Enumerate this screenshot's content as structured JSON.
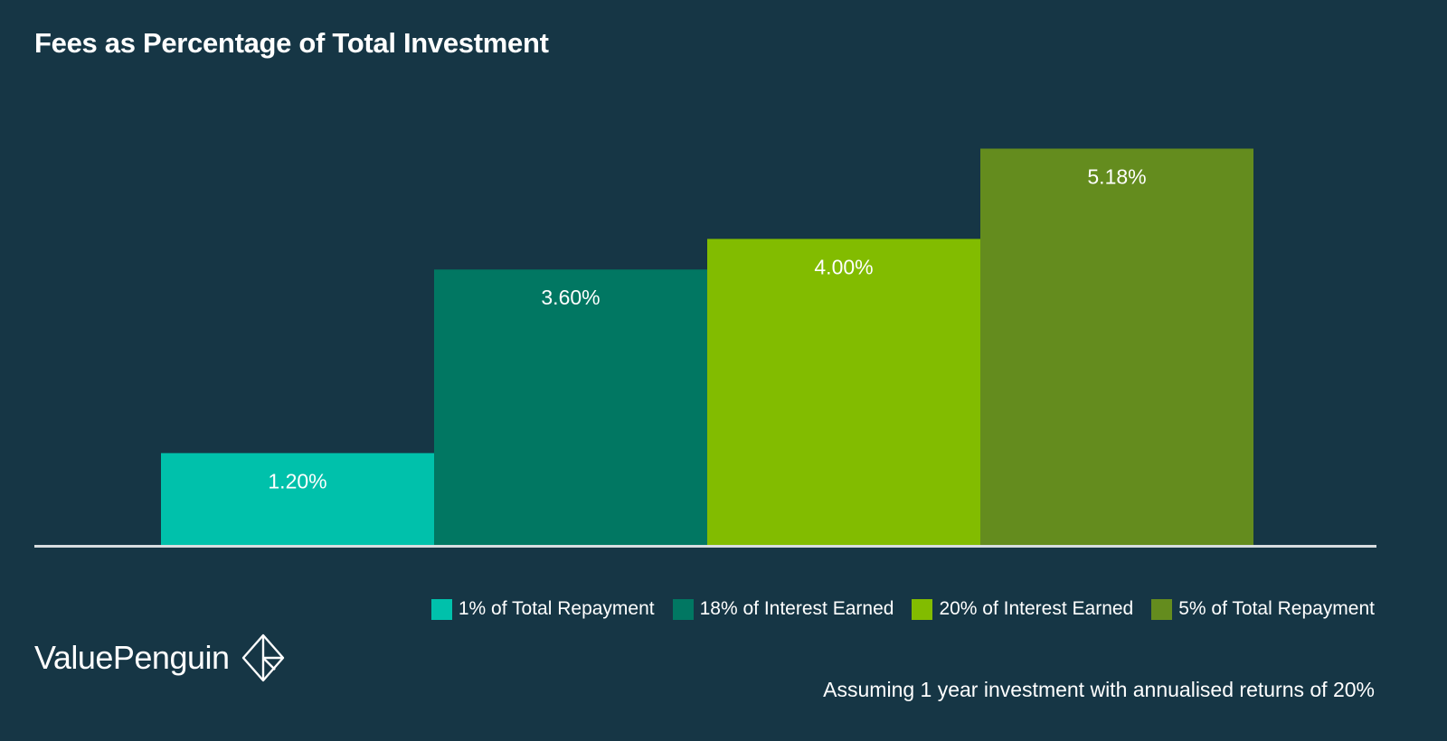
{
  "brand": "ValuePenguin",
  "note": "Assuming 1 year investment with annualised returns of 20%",
  "colors": {
    "background": "#163645",
    "baseline": "#d8dde0",
    "label": "#ffffff"
  },
  "chart_data": {
    "type": "bar",
    "title": "Fees as Percentage of Total Investment",
    "xlabel": "",
    "ylabel": "",
    "ylim": [
      0,
      5.8
    ],
    "grid": false,
    "legend_position": "bottom-right",
    "categories": [
      "1% of Total Repayment",
      "18% of Interest Earned",
      "20% of Interest Earned",
      "5% of Total Repayment"
    ],
    "values": [
      1.2,
      3.6,
      4.0,
      5.18
    ],
    "data_labels": [
      "1.20%",
      "3.60%",
      "4.00%",
      "5.18%"
    ],
    "colors": [
      "#00c1ab",
      "#017762",
      "#82bc00",
      "#648c1e"
    ]
  }
}
